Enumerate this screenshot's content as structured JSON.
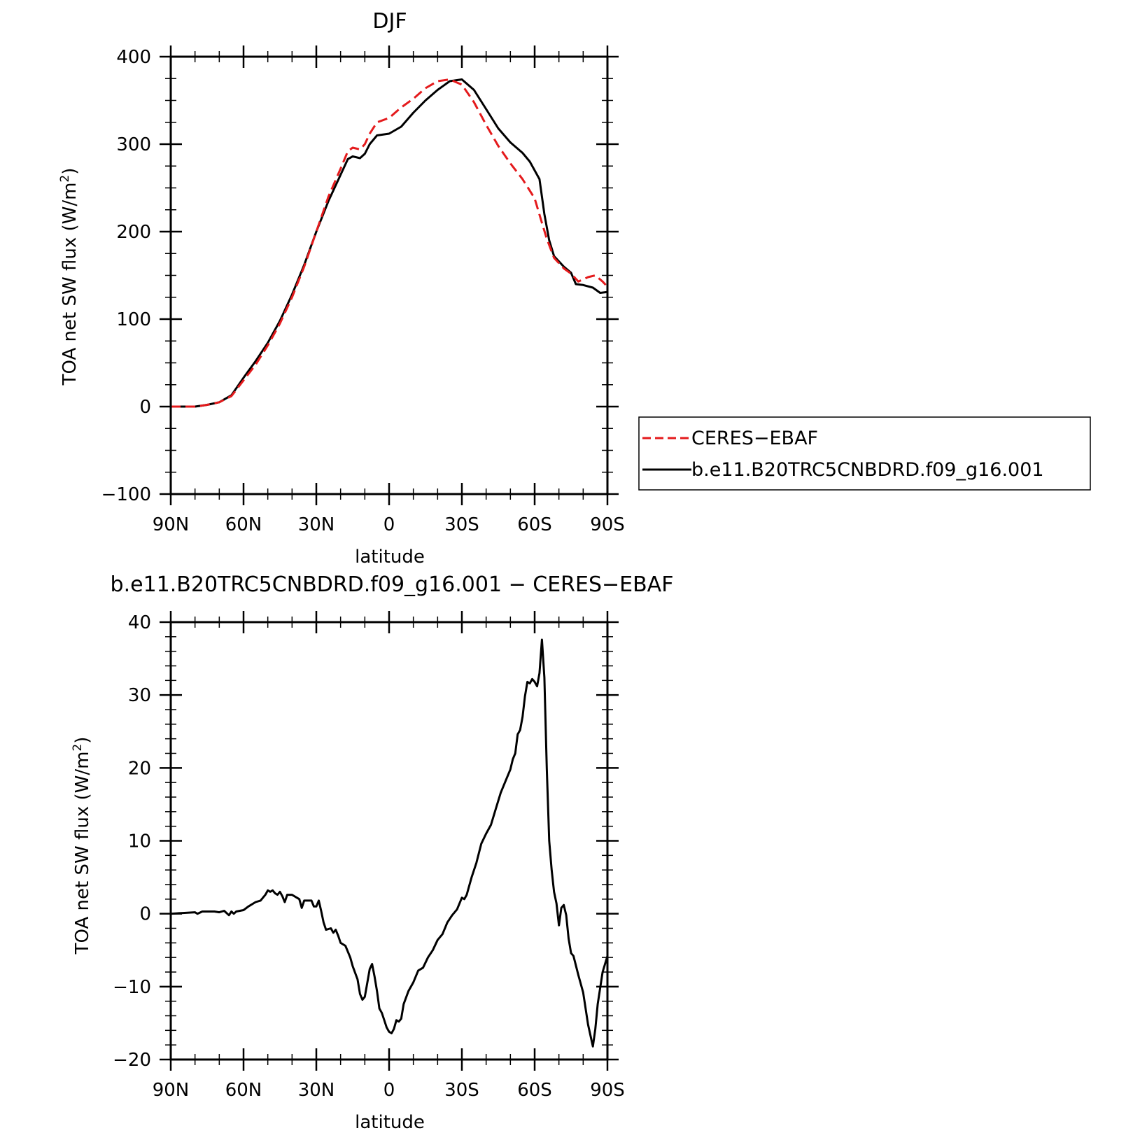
{
  "colors": {
    "obs": "#e41a1c",
    "model": "#000000"
  },
  "chart_data": [
    {
      "type": "line",
      "title": "DJF",
      "xlabel": "latitude",
      "ylabel_main": "TOA net SW flux (W/m",
      "ylabel_sup": "2",
      "ylabel_tail": ")",
      "xlim": [
        90,
        -90
      ],
      "ylim": [
        -100,
        400
      ],
      "xticks": [
        90,
        60,
        30,
        0,
        -30,
        -60,
        -90
      ],
      "xtick_labels": [
        "90N",
        "60N",
        "30N",
        "0",
        "30S",
        "60S",
        "90S"
      ],
      "yticks": [
        -100,
        0,
        100,
        200,
        300,
        400
      ],
      "ytick_labels": [
        "−100",
        "0",
        "100",
        "200",
        "300",
        "400"
      ],
      "legend": {
        "position": "right"
      },
      "series": [
        {
          "name": "CERES−EBAF",
          "style": "dashed",
          "points": [
            [
              90,
              0
            ],
            [
              85,
              0
            ],
            [
              80,
              0
            ],
            [
              75,
              2
            ],
            [
              70,
              5
            ],
            [
              65,
              12
            ],
            [
              60,
              30
            ],
            [
              55,
              48
            ],
            [
              50,
              70
            ],
            [
              45,
              95
            ],
            [
              40,
              125
            ],
            [
              35,
              160
            ],
            [
              30,
              200
            ],
            [
              25,
              240
            ],
            [
              20,
              272
            ],
            [
              17,
              292
            ],
            [
              15,
              296
            ],
            [
              12,
              294
            ],
            [
              10,
              300
            ],
            [
              8,
              312
            ],
            [
              5,
              325
            ],
            [
              0,
              330
            ],
            [
              -5,
              342
            ],
            [
              -10,
              352
            ],
            [
              -15,
              364
            ],
            [
              -20,
              372
            ],
            [
              -25,
              374
            ],
            [
              -30,
              368
            ],
            [
              -35,
              348
            ],
            [
              -40,
              322
            ],
            [
              -45,
              298
            ],
            [
              -50,
              278
            ],
            [
              -55,
              260
            ],
            [
              -60,
              238
            ],
            [
              -63,
              210
            ],
            [
              -65,
              192
            ],
            [
              -68,
              170
            ],
            [
              -72,
              158
            ],
            [
              -75,
              152
            ],
            [
              -78,
              143
            ],
            [
              -82,
              148
            ],
            [
              -85,
              150
            ],
            [
              -88,
              143
            ],
            [
              -90,
              137
            ]
          ]
        },
        {
          "name": "b.e11.B20TRC5CNBDRD.f09_g16.001",
          "style": "solid",
          "points": [
            [
              90,
              0
            ],
            [
              85,
              0
            ],
            [
              80,
              0
            ],
            [
              75,
              2
            ],
            [
              70,
              5
            ],
            [
              65,
              13
            ],
            [
              60,
              33
            ],
            [
              55,
              52
            ],
            [
              50,
              73
            ],
            [
              45,
              98
            ],
            [
              40,
              128
            ],
            [
              35,
              162
            ],
            [
              30,
              200
            ],
            [
              25,
              235
            ],
            [
              20,
              265
            ],
            [
              17,
              283
            ],
            [
              15,
              286
            ],
            [
              12,
              284
            ],
            [
              10,
              289
            ],
            [
              8,
              300
            ],
            [
              5,
              310
            ],
            [
              0,
              312
            ],
            [
              -5,
              320
            ],
            [
              -10,
              336
            ],
            [
              -15,
              350
            ],
            [
              -20,
              362
            ],
            [
              -25,
              372
            ],
            [
              -30,
              374
            ],
            [
              -35,
              362
            ],
            [
              -40,
              340
            ],
            [
              -45,
              318
            ],
            [
              -50,
              302
            ],
            [
              -55,
              290
            ],
            [
              -58,
              280
            ],
            [
              -62,
              260
            ],
            [
              -64,
              220
            ],
            [
              -66,
              190
            ],
            [
              -68,
              172
            ],
            [
              -72,
              160
            ],
            [
              -75,
              153
            ],
            [
              -77,
              140
            ],
            [
              -80,
              139
            ],
            [
              -84,
              136
            ],
            [
              -87,
              130
            ],
            [
              -90,
              131
            ]
          ]
        }
      ]
    },
    {
      "type": "line",
      "title": "b.e11.B20TRC5CNBDRD.f09_g16.001 − CERES−EBAF",
      "xlabel": "latitude",
      "ylabel_main": "TOA net SW flux (W/m",
      "ylabel_sup": "2",
      "ylabel_tail": ")",
      "xlim": [
        90,
        -90
      ],
      "ylim": [
        -20,
        40
      ],
      "xticks": [
        90,
        60,
        30,
        0,
        -30,
        -60,
        -90
      ],
      "xtick_labels": [
        "90N",
        "60N",
        "30N",
        "0",
        "30S",
        "60S",
        "90S"
      ],
      "yticks": [
        -20,
        -10,
        0,
        10,
        20,
        30,
        40
      ],
      "ytick_labels": [
        "−20",
        "−10",
        "0",
        "10",
        "20",
        "30",
        "40"
      ],
      "series": [
        {
          "style": "solid",
          "points": [
            [
              90,
              0
            ],
            [
              85,
              0.1
            ],
            [
              80,
              0.2
            ],
            [
              79,
              0
            ],
            [
              77,
              0.3
            ],
            [
              72,
              0.3
            ],
            [
              70,
              0.2
            ],
            [
              68,
              0.4
            ],
            [
              67,
              0.1
            ],
            [
              66,
              -0.2
            ],
            [
              65,
              0.3
            ],
            [
              64,
              0
            ],
            [
              63,
              0.3
            ],
            [
              60,
              0.5
            ],
            [
              58,
              1
            ],
            [
              55,
              1.6
            ],
            [
              53,
              1.8
            ],
            [
              51,
              2.6
            ],
            [
              50,
              3.2
            ],
            [
              49,
              3.0
            ],
            [
              48,
              3.2
            ],
            [
              47,
              2.8
            ],
            [
              46,
              2.6
            ],
            [
              45,
              3.0
            ],
            [
              44,
              2.4
            ],
            [
              43,
              1.6
            ],
            [
              42,
              2.6
            ],
            [
              40,
              2.6
            ],
            [
              38,
              2.2
            ],
            [
              37,
              2.0
            ],
            [
              36,
              0.8
            ],
            [
              35,
              1.8
            ],
            [
              33,
              1.8
            ],
            [
              32,
              1.8
            ],
            [
              31,
              1.0
            ],
            [
              30,
              1.0
            ],
            [
              29,
              1.8
            ],
            [
              28,
              0.4
            ],
            [
              27,
              -1.2
            ],
            [
              26,
              -2.2
            ],
            [
              24,
              -2.0
            ],
            [
              23,
              -2.6
            ],
            [
              22,
              -2.2
            ],
            [
              21,
              -3.0
            ],
            [
              20,
              -4.0
            ],
            [
              18,
              -4.4
            ],
            [
              16,
              -6.0
            ],
            [
              15,
              -7.2
            ],
            [
              13,
              -9.0
            ],
            [
              12,
              -11.0
            ],
            [
              11,
              -11.8
            ],
            [
              10,
              -11.4
            ],
            [
              9,
              -9.5
            ],
            [
              8,
              -7.6
            ],
            [
              7,
              -6.9
            ],
            [
              6,
              -8.6
            ],
            [
              5,
              -10.6
            ],
            [
              4,
              -13.0
            ],
            [
              3,
              -13.6
            ],
            [
              2,
              -14.6
            ],
            [
              1,
              -15.6
            ],
            [
              0,
              -16.2
            ],
            [
              -1,
              -16.4
            ],
            [
              -2,
              -15.8
            ],
            [
              -3,
              -14.6
            ],
            [
              -4,
              -14.8
            ],
            [
              -5,
              -14.4
            ],
            [
              -6,
              -12.4
            ],
            [
              -8,
              -10.6
            ],
            [
              -10,
              -9.4
            ],
            [
              -12,
              -7.8
            ],
            [
              -14,
              -7.4
            ],
            [
              -16,
              -6.0
            ],
            [
              -18,
              -5.0
            ],
            [
              -20,
              -3.6
            ],
            [
              -22,
              -2.8
            ],
            [
              -24,
              -1.2
            ],
            [
              -26,
              -0.2
            ],
            [
              -28,
              0.6
            ],
            [
              -30,
              2.2
            ],
            [
              -31,
              2.0
            ],
            [
              -32,
              2.6
            ],
            [
              -34,
              5.0
            ],
            [
              -36,
              7.0
            ],
            [
              -38,
              9.6
            ],
            [
              -40,
              11.0
            ],
            [
              -42,
              12.2
            ],
            [
              -44,
              14.4
            ],
            [
              -46,
              16.6
            ],
            [
              -48,
              18.2
            ],
            [
              -50,
              19.8
            ],
            [
              -51,
              21.2
            ],
            [
              -52,
              22.0
            ],
            [
              -53,
              24.6
            ],
            [
              -54,
              25.2
            ],
            [
              -55,
              27.0
            ],
            [
              -56,
              29.8
            ],
            [
              -57,
              31.8
            ],
            [
              -58,
              31.6
            ],
            [
              -59,
              32.2
            ],
            [
              -60,
              31.8
            ],
            [
              -61,
              31.2
            ],
            [
              -62,
              33.0
            ],
            [
              -63,
              37.6
            ],
            [
              -64,
              32.4
            ],
            [
              -65,
              20.0
            ],
            [
              -66,
              10.0
            ],
            [
              -67,
              6.0
            ],
            [
              -68,
              3.0
            ],
            [
              -69,
              1.4
            ],
            [
              -70,
              -1.6
            ],
            [
              -71,
              0.8
            ],
            [
              -72,
              1.2
            ],
            [
              -73,
              -0.2
            ],
            [
              -74,
              -3.4
            ],
            [
              -75,
              -5.4
            ],
            [
              -76,
              -5.8
            ],
            [
              -78,
              -8.4
            ],
            [
              -80,
              -10.8
            ],
            [
              -82,
              -15.2
            ],
            [
              -84,
              -18.2
            ],
            [
              -85,
              -15.8
            ],
            [
              -86,
              -12.4
            ],
            [
              -88,
              -8.0
            ],
            [
              -90,
              -5.8
            ]
          ]
        }
      ]
    }
  ]
}
